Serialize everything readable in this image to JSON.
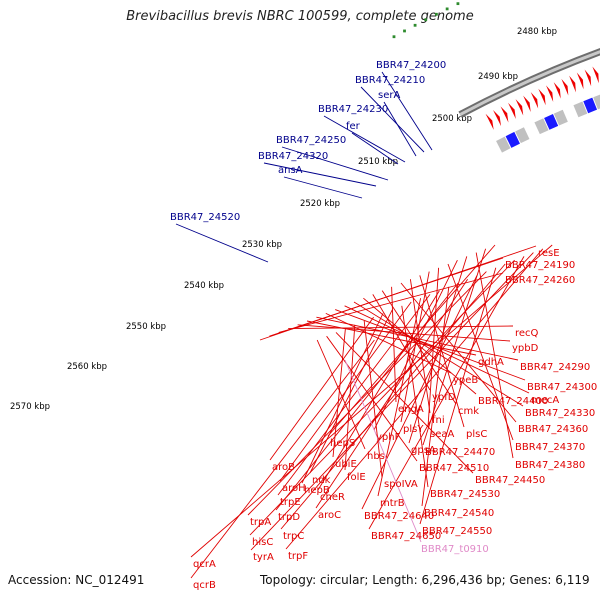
{
  "title": "Brevibacillus brevis NBRC 100599, complete genome",
  "footer": {
    "accession": "Accession: NC_012491",
    "summary": "Topology: circular; Length: 6,296,436 bp; Genes: 6,119"
  },
  "colors": {
    "forward_feature_labels": "#00008B",
    "reverse_feature_labels": "#E00000",
    "rna_label": "#E08AC8",
    "backbone": "#888888",
    "tick_dots": "#2E8B2E",
    "arrow_red": "#EE0000",
    "arrow_blue": "#0000EE"
  },
  "ticks": [
    {
      "label": "2480 kbp"
    },
    {
      "label": "2490 kbp"
    },
    {
      "label": "2500 kbp"
    },
    {
      "label": "2510 kbp"
    },
    {
      "label": "2520 kbp"
    },
    {
      "label": "2530 kbp"
    },
    {
      "label": "2540 kbp"
    },
    {
      "label": "2550 kbp"
    },
    {
      "label": "2560 kbp"
    },
    {
      "label": "2570 kbp"
    }
  ],
  "forward_labels": [
    {
      "text": "BBR47_24200"
    },
    {
      "text": "BBR47_24210"
    },
    {
      "text": "serA"
    },
    {
      "text": "BBR47_24230"
    },
    {
      "text": "fer"
    },
    {
      "text": "BBR47_24250"
    },
    {
      "text": "BBR47_24320"
    },
    {
      "text": "ansA"
    },
    {
      "text": "BBR47_24520"
    }
  ],
  "reverse_labels": [
    {
      "text": "resE"
    },
    {
      "text": "BBR47_24190"
    },
    {
      "text": "BBR47_24260"
    },
    {
      "text": "recQ"
    },
    {
      "text": "ypbD"
    },
    {
      "text": "gdhA"
    },
    {
      "text": "BBR47_24290"
    },
    {
      "text": "ypeB"
    },
    {
      "text": "BBR47_24300"
    },
    {
      "text": "mecA"
    },
    {
      "text": "BBR47_24330"
    },
    {
      "text": "BBR47_24400"
    },
    {
      "text": "ypfD"
    },
    {
      "text": "cmk"
    },
    {
      "text": "engA"
    },
    {
      "text": "BBR47_24360"
    },
    {
      "text": "fni"
    },
    {
      "text": "plsC"
    },
    {
      "text": "plsY"
    },
    {
      "text": "seaA"
    },
    {
      "text": "BBR47_24370"
    },
    {
      "text": "yphF"
    },
    {
      "text": "gpsA"
    },
    {
      "text": "BBR47_24380"
    },
    {
      "text": "BBR47_24470"
    },
    {
      "text": "hepS"
    },
    {
      "text": "hbs"
    },
    {
      "text": "BBR47_24510"
    },
    {
      "text": "BBR47_24450"
    },
    {
      "text": "ubiE"
    },
    {
      "text": "folE"
    },
    {
      "text": "spoIVA"
    },
    {
      "text": "aroB"
    },
    {
      "text": "hepB"
    },
    {
      "text": "ndk"
    },
    {
      "text": "BBR47_24530"
    },
    {
      "text": "aroH"
    },
    {
      "text": "mtrB"
    },
    {
      "text": "trpE"
    },
    {
      "text": "cheR"
    },
    {
      "text": "BBR47_24540"
    },
    {
      "text": "trpD"
    },
    {
      "text": "aroC"
    },
    {
      "text": "BBR47_24640"
    },
    {
      "text": "trpA"
    },
    {
      "text": "BBR47_24550"
    },
    {
      "text": "trpC"
    },
    {
      "text": "hisC"
    },
    {
      "text": "BBR47_24650"
    },
    {
      "text": "tyrA"
    },
    {
      "text": "trpF"
    },
    {
      "text": "qcrA"
    },
    {
      "text": "qcrB"
    }
  ],
  "rna_labels": [
    {
      "text": "BBR47_t0910"
    }
  ]
}
